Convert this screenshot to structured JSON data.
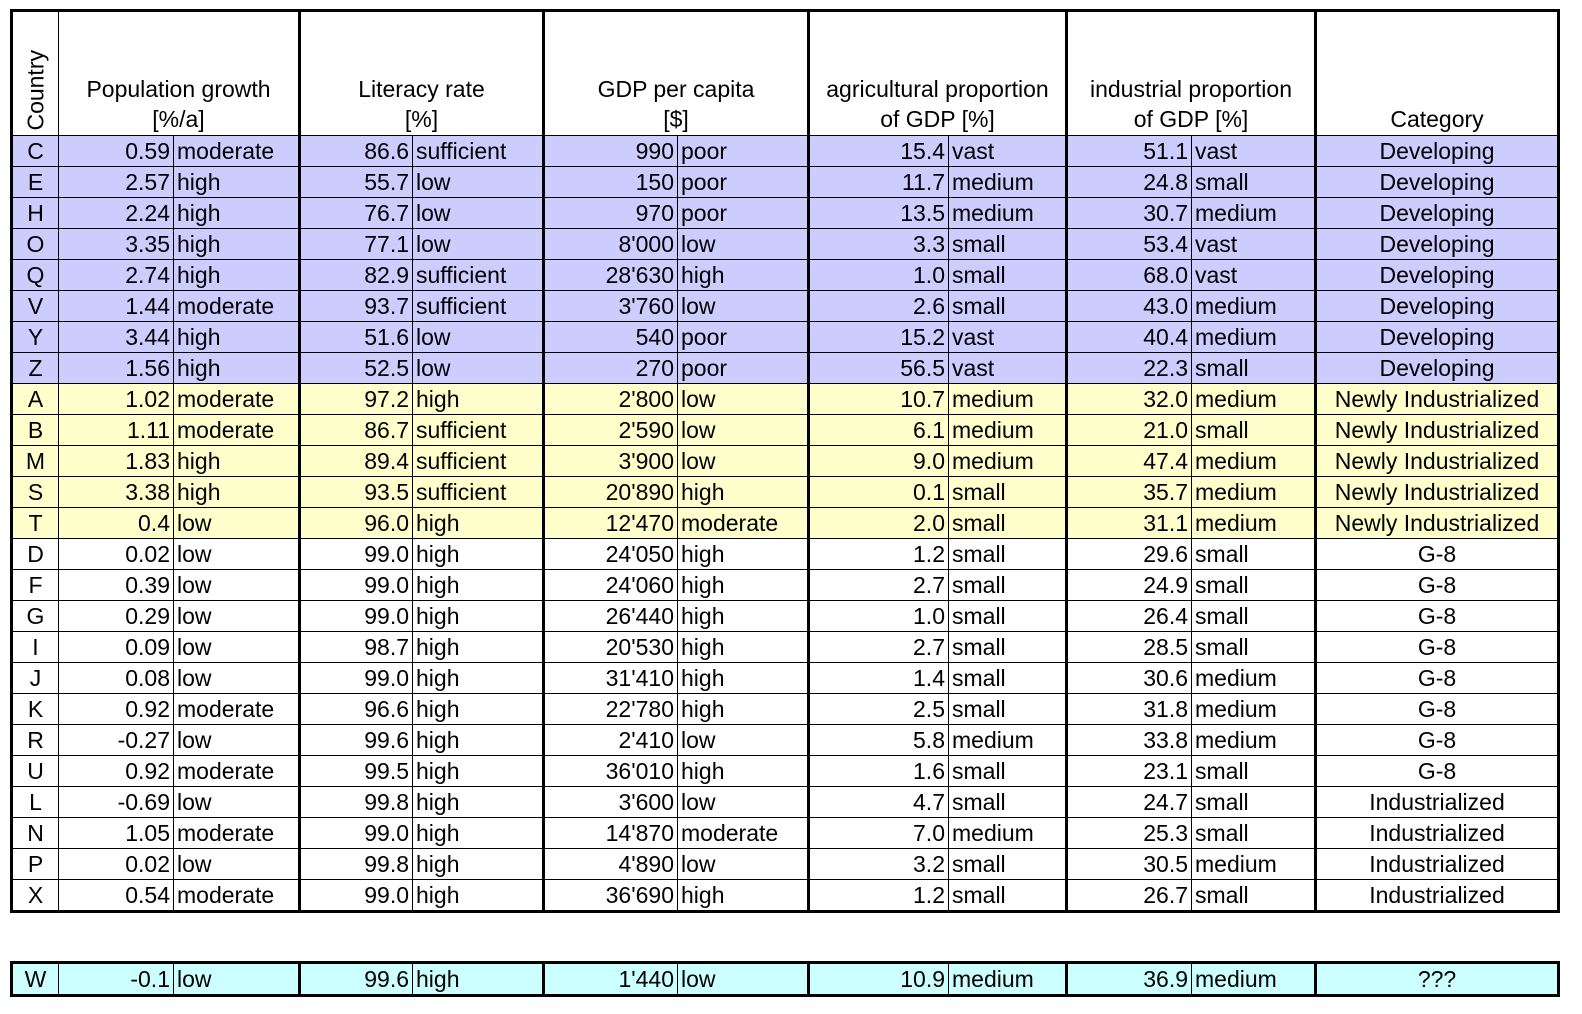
{
  "headers": {
    "country": "Country",
    "pop_growth": [
      "Population growth",
      "[%/a]"
    ],
    "literacy": [
      "Literacy rate",
      "[%]"
    ],
    "gdp": [
      "GDP per capita",
      "[$]"
    ],
    "agri": [
      "agricultural proportion",
      "of GDP [%]"
    ],
    "indus": [
      "industrial proportion",
      "of GDP [%]"
    ],
    "category": [
      "Category"
    ]
  },
  "rows": [
    {
      "country": "C",
      "pop": "0.59",
      "pop_l": "moderate",
      "lit": "86.6",
      "lit_l": "sufficient",
      "gdp": "990",
      "gdp_l": "poor",
      "agri": "15.4",
      "agri_l": "vast",
      "ind": "51.1",
      "ind_l": "vast",
      "cat": "Developing",
      "group": "developing"
    },
    {
      "country": "E",
      "pop": "2.57",
      "pop_l": "high",
      "lit": "55.7",
      "lit_l": "low",
      "gdp": "150",
      "gdp_l": "poor",
      "agri": "11.7",
      "agri_l": "medium",
      "ind": "24.8",
      "ind_l": "small",
      "cat": "Developing",
      "group": "developing"
    },
    {
      "country": "H",
      "pop": "2.24",
      "pop_l": "high",
      "lit": "76.7",
      "lit_l": "low",
      "gdp": "970",
      "gdp_l": "poor",
      "agri": "13.5",
      "agri_l": "medium",
      "ind": "30.7",
      "ind_l": "medium",
      "cat": "Developing",
      "group": "developing"
    },
    {
      "country": "O",
      "pop": "3.35",
      "pop_l": "high",
      "lit": "77.1",
      "lit_l": "low",
      "gdp": "8'000",
      "gdp_l": "low",
      "agri": "3.3",
      "agri_l": "small",
      "ind": "53.4",
      "ind_l": "vast",
      "cat": "Developing",
      "group": "developing"
    },
    {
      "country": "Q",
      "pop": "2.74",
      "pop_l": "high",
      "lit": "82.9",
      "lit_l": "sufficient",
      "gdp": "28'630",
      "gdp_l": "high",
      "agri": "1.0",
      "agri_l": "small",
      "ind": "68.0",
      "ind_l": "vast",
      "cat": "Developing",
      "group": "developing"
    },
    {
      "country": "V",
      "pop": "1.44",
      "pop_l": "moderate",
      "lit": "93.7",
      "lit_l": "sufficient",
      "gdp": "3'760",
      "gdp_l": "low",
      "agri": "2.6",
      "agri_l": "small",
      "ind": "43.0",
      "ind_l": "medium",
      "cat": "Developing",
      "group": "developing"
    },
    {
      "country": "Y",
      "pop": "3.44",
      "pop_l": "high",
      "lit": "51.6",
      "lit_l": "low",
      "gdp": "540",
      "gdp_l": "poor",
      "agri": "15.2",
      "agri_l": "vast",
      "ind": "40.4",
      "ind_l": "medium",
      "cat": "Developing",
      "group": "developing"
    },
    {
      "country": "Z",
      "pop": "1.56",
      "pop_l": "high",
      "lit": "52.5",
      "lit_l": "low",
      "gdp": "270",
      "gdp_l": "poor",
      "agri": "56.5",
      "agri_l": "vast",
      "ind": "22.3",
      "ind_l": "small",
      "cat": "Developing",
      "group": "developing"
    },
    {
      "country": "A",
      "pop": "1.02",
      "pop_l": "moderate",
      "lit": "97.2",
      "lit_l": "high",
      "gdp": "2'800",
      "gdp_l": "low",
      "agri": "10.7",
      "agri_l": "medium",
      "ind": "32.0",
      "ind_l": "medium",
      "cat": "Newly Industrialized",
      "group": "newly"
    },
    {
      "country": "B",
      "pop": "1.11",
      "pop_l": "moderate",
      "lit": "86.7",
      "lit_l": "sufficient",
      "gdp": "2'590",
      "gdp_l": "low",
      "agri": "6.1",
      "agri_l": "medium",
      "ind": "21.0",
      "ind_l": "small",
      "cat": "Newly Industrialized",
      "group": "newly"
    },
    {
      "country": "M",
      "pop": "1.83",
      "pop_l": "high",
      "lit": "89.4",
      "lit_l": "sufficient",
      "gdp": "3'900",
      "gdp_l": "low",
      "agri": "9.0",
      "agri_l": "medium",
      "ind": "47.4",
      "ind_l": "medium",
      "cat": "Newly Industrialized",
      "group": "newly"
    },
    {
      "country": "S",
      "pop": "3.38",
      "pop_l": "high",
      "lit": "93.5",
      "lit_l": "sufficient",
      "gdp": "20'890",
      "gdp_l": "high",
      "agri": "0.1",
      "agri_l": "small",
      "ind": "35.7",
      "ind_l": "medium",
      "cat": "Newly Industrialized",
      "group": "newly"
    },
    {
      "country": "T",
      "pop": "0.4",
      "pop_l": "low",
      "lit": "96.0",
      "lit_l": "high",
      "gdp": "12'470",
      "gdp_l": "moderate",
      "agri": "2.0",
      "agri_l": "small",
      "ind": "31.1",
      "ind_l": "medium",
      "cat": "Newly Industrialized",
      "group": "newly"
    },
    {
      "country": "D",
      "pop": "0.02",
      "pop_l": "low",
      "lit": "99.0",
      "lit_l": "high",
      "gdp": "24'050",
      "gdp_l": "high",
      "agri": "1.2",
      "agri_l": "small",
      "ind": "29.6",
      "ind_l": "small",
      "cat": "G-8",
      "group": "plain"
    },
    {
      "country": "F",
      "pop": "0.39",
      "pop_l": "low",
      "lit": "99.0",
      "lit_l": "high",
      "gdp": "24'060",
      "gdp_l": "high",
      "agri": "2.7",
      "agri_l": "small",
      "ind": "24.9",
      "ind_l": "small",
      "cat": "G-8",
      "group": "plain"
    },
    {
      "country": "G",
      "pop": "0.29",
      "pop_l": "low",
      "lit": "99.0",
      "lit_l": "high",
      "gdp": "26'440",
      "gdp_l": "high",
      "agri": "1.0",
      "agri_l": "small",
      "ind": "26.4",
      "ind_l": "small",
      "cat": "G-8",
      "group": "plain"
    },
    {
      "country": "I",
      "pop": "0.09",
      "pop_l": "low",
      "lit": "98.7",
      "lit_l": "high",
      "gdp": "20'530",
      "gdp_l": "high",
      "agri": "2.7",
      "agri_l": "small",
      "ind": "28.5",
      "ind_l": "small",
      "cat": "G-8",
      "group": "plain"
    },
    {
      "country": "J",
      "pop": "0.08",
      "pop_l": "low",
      "lit": "99.0",
      "lit_l": "high",
      "gdp": "31'410",
      "gdp_l": "high",
      "agri": "1.4",
      "agri_l": "small",
      "ind": "30.6",
      "ind_l": "medium",
      "cat": "G-8",
      "group": "plain"
    },
    {
      "country": "K",
      "pop": "0.92",
      "pop_l": "moderate",
      "lit": "96.6",
      "lit_l": "high",
      "gdp": "22'780",
      "gdp_l": "high",
      "agri": "2.5",
      "agri_l": "small",
      "ind": "31.8",
      "ind_l": "medium",
      "cat": "G-8",
      "group": "plain"
    },
    {
      "country": "R",
      "pop": "-0.27",
      "pop_l": "low",
      "lit": "99.6",
      "lit_l": "high",
      "gdp": "2'410",
      "gdp_l": "low",
      "agri": "5.8",
      "agri_l": "medium",
      "ind": "33.8",
      "ind_l": "medium",
      "cat": "G-8",
      "group": "plain"
    },
    {
      "country": "U",
      "pop": "0.92",
      "pop_l": "moderate",
      "lit": "99.5",
      "lit_l": "high",
      "gdp": "36'010",
      "gdp_l": "high",
      "agri": "1.6",
      "agri_l": "small",
      "ind": "23.1",
      "ind_l": "small",
      "cat": "G-8",
      "group": "plain"
    },
    {
      "country": "L",
      "pop": "-0.69",
      "pop_l": "low",
      "lit": "99.8",
      "lit_l": "high",
      "gdp": "3'600",
      "gdp_l": "low",
      "agri": "4.7",
      "agri_l": "small",
      "ind": "24.7",
      "ind_l": "small",
      "cat": "Industrialized",
      "group": "plain"
    },
    {
      "country": "N",
      "pop": "1.05",
      "pop_l": "moderate",
      "lit": "99.0",
      "lit_l": "high",
      "gdp": "14'870",
      "gdp_l": "moderate",
      "agri": "7.0",
      "agri_l": "medium",
      "ind": "25.3",
      "ind_l": "small",
      "cat": "Industrialized",
      "group": "plain"
    },
    {
      "country": "P",
      "pop": "0.02",
      "pop_l": "low",
      "lit": "99.8",
      "lit_l": "high",
      "gdp": "4'890",
      "gdp_l": "low",
      "agri": "3.2",
      "agri_l": "small",
      "ind": "30.5",
      "ind_l": "medium",
      "cat": "Industrialized",
      "group": "plain"
    },
    {
      "country": "X",
      "pop": "0.54",
      "pop_l": "moderate",
      "lit": "99.0",
      "lit_l": "high",
      "gdp": "36'690",
      "gdp_l": "high",
      "agri": "1.2",
      "agri_l": "small",
      "ind": "26.7",
      "ind_l": "small",
      "cat": "Industrialized",
      "group": "plain"
    }
  ],
  "query": {
    "country": "W",
    "pop": "-0.1",
    "pop_l": "low",
    "lit": "99.6",
    "lit_l": "high",
    "gdp": "1'440",
    "gdp_l": "low",
    "agri": "10.9",
    "agri_l": "medium",
    "ind": "36.9",
    "ind_l": "medium",
    "cat": "???",
    "group": "query"
  },
  "colors": {
    "developing": "#ccccff",
    "newly": "#ffffcc",
    "query": "#ccffff",
    "plain": "#ffffff"
  }
}
